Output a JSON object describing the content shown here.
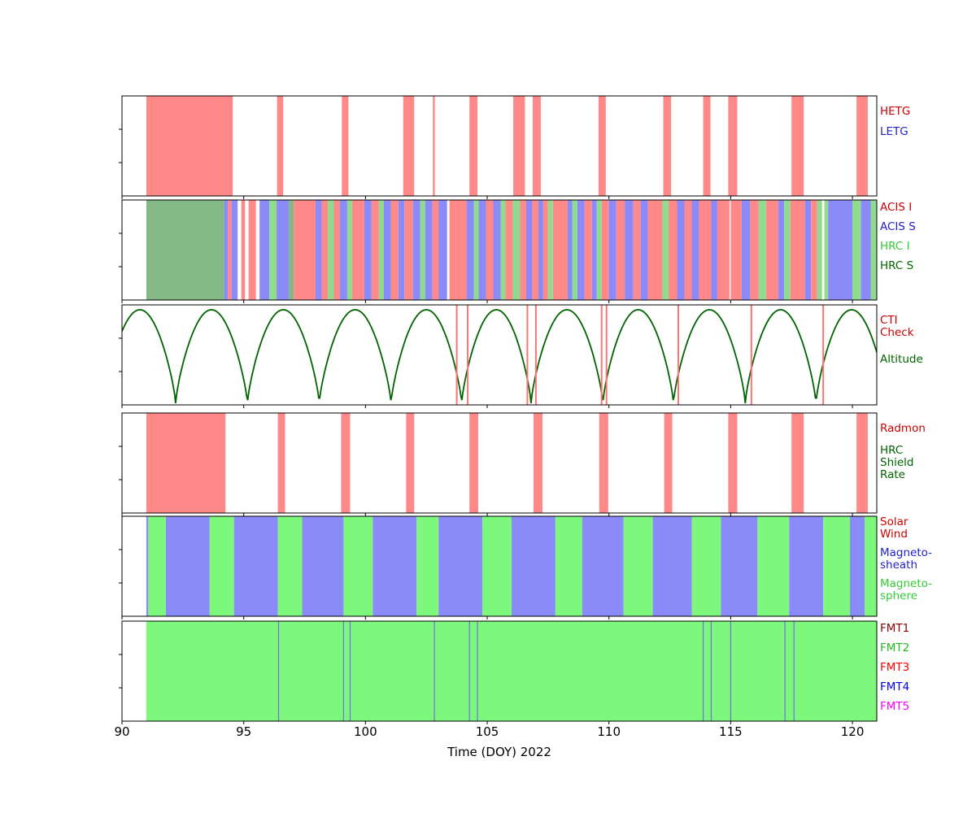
{
  "chart_data": {
    "type": "timeline",
    "title": "",
    "x_axis": {
      "label": "Time (DOY) 2022",
      "range": [
        90,
        121
      ],
      "ticks": [
        90,
        95,
        100,
        105,
        110,
        115,
        120
      ]
    },
    "palette": {
      "R": "#ff8888",
      "B": "#8a8af8",
      "G": "#8fdc8f",
      "S": "#84b884",
      "F": "#7df87d",
      "W": "#ffffff",
      "altitude": "#006400",
      "cti": "#ff7474",
      "fmt_line": "#7272e0"
    },
    "panels": [
      {
        "id": "gratings",
        "type": "interval-timeline",
        "legend": [
          {
            "label": "HETG",
            "color": "#cc0000"
          },
          {
            "label": "LETG",
            "color": "#2222cc"
          }
        ],
        "intervals": [
          [
            91.0,
            94.55,
            "R"
          ],
          [
            96.37,
            96.62,
            "R"
          ],
          [
            99.03,
            99.3,
            "R"
          ],
          [
            101.55,
            102.0,
            "R"
          ],
          [
            102.77,
            102.85,
            "R"
          ],
          [
            104.27,
            104.6,
            "R"
          ],
          [
            106.07,
            106.55,
            "R"
          ],
          [
            106.87,
            107.2,
            "R"
          ],
          [
            109.57,
            109.87,
            "R"
          ],
          [
            112.23,
            112.55,
            "R"
          ],
          [
            113.87,
            114.17,
            "R"
          ],
          [
            114.9,
            115.27,
            "R"
          ],
          [
            117.5,
            118.0,
            "R"
          ],
          [
            120.17,
            120.63,
            "R"
          ]
        ]
      },
      {
        "id": "instruments",
        "type": "interval-timeline",
        "legend": [
          {
            "label": "ACIS I",
            "color": "#cc0000"
          },
          {
            "label": "ACIS S",
            "color": "#2222cc"
          },
          {
            "label": "HRC I",
            "color": "#33cc33"
          },
          {
            "label": "HRC S",
            "color": "#006400"
          }
        ],
        "intervals": [
          [
            91.0,
            94.2,
            "S"
          ],
          [
            94.2,
            94.35,
            "B"
          ],
          [
            94.35,
            94.5,
            "R"
          ],
          [
            94.5,
            94.75,
            "B"
          ],
          [
            94.9,
            95.05,
            "R"
          ],
          [
            95.2,
            95.5,
            "R"
          ],
          [
            95.65,
            96.05,
            "B"
          ],
          [
            96.05,
            96.35,
            "G"
          ],
          [
            96.35,
            96.85,
            "B"
          ],
          [
            96.85,
            97.05,
            "S"
          ],
          [
            97.05,
            97.95,
            "R"
          ],
          [
            97.95,
            98.2,
            "B"
          ],
          [
            98.2,
            98.45,
            "R"
          ],
          [
            98.45,
            98.7,
            "G"
          ],
          [
            98.7,
            98.95,
            "R"
          ],
          [
            98.95,
            99.25,
            "B"
          ],
          [
            99.25,
            99.45,
            "G"
          ],
          [
            99.45,
            99.95,
            "R"
          ],
          [
            99.95,
            100.25,
            "B"
          ],
          [
            100.25,
            100.55,
            "R"
          ],
          [
            100.55,
            100.75,
            "G"
          ],
          [
            100.75,
            101.05,
            "B"
          ],
          [
            101.05,
            101.35,
            "R"
          ],
          [
            101.35,
            101.6,
            "B"
          ],
          [
            101.6,
            101.95,
            "R"
          ],
          [
            101.95,
            102.25,
            "B"
          ],
          [
            102.25,
            102.45,
            "G"
          ],
          [
            102.45,
            102.75,
            "B"
          ],
          [
            102.75,
            103.0,
            "R"
          ],
          [
            103.0,
            103.35,
            "B"
          ],
          [
            103.45,
            104.15,
            "R"
          ],
          [
            104.15,
            104.45,
            "B"
          ],
          [
            104.45,
            104.65,
            "G"
          ],
          [
            104.65,
            104.95,
            "B"
          ],
          [
            104.95,
            105.25,
            "R"
          ],
          [
            105.25,
            105.55,
            "B"
          ],
          [
            105.55,
            105.75,
            "G"
          ],
          [
            105.75,
            106.05,
            "R"
          ],
          [
            106.05,
            106.35,
            "G"
          ],
          [
            106.35,
            106.6,
            "R"
          ],
          [
            106.6,
            106.85,
            "B"
          ],
          [
            106.85,
            107.1,
            "R"
          ],
          [
            107.1,
            107.3,
            "B"
          ],
          [
            107.3,
            107.5,
            "R"
          ],
          [
            107.5,
            107.7,
            "G"
          ],
          [
            107.7,
            108.3,
            "R"
          ],
          [
            108.3,
            108.5,
            "B"
          ],
          [
            108.5,
            108.7,
            "G"
          ],
          [
            108.7,
            109.0,
            "B"
          ],
          [
            109.0,
            109.3,
            "R"
          ],
          [
            109.3,
            109.5,
            "B"
          ],
          [
            109.5,
            109.7,
            "G"
          ],
          [
            109.7,
            110.0,
            "R"
          ],
          [
            110.0,
            110.3,
            "B"
          ],
          [
            110.3,
            110.65,
            "R"
          ],
          [
            110.65,
            111.0,
            "B"
          ],
          [
            111.0,
            111.3,
            "R"
          ],
          [
            111.3,
            111.6,
            "B"
          ],
          [
            111.6,
            112.2,
            "R"
          ],
          [
            112.2,
            112.45,
            "G"
          ],
          [
            112.45,
            112.8,
            "R"
          ],
          [
            112.8,
            113.1,
            "B"
          ],
          [
            113.1,
            113.4,
            "R"
          ],
          [
            113.4,
            113.7,
            "B"
          ],
          [
            113.7,
            114.2,
            "R"
          ],
          [
            114.2,
            114.45,
            "B"
          ],
          [
            114.45,
            114.95,
            "R"
          ],
          [
            115.0,
            115.45,
            "R"
          ],
          [
            115.45,
            115.8,
            "B"
          ],
          [
            115.8,
            116.15,
            "R"
          ],
          [
            116.15,
            116.45,
            "G"
          ],
          [
            116.45,
            116.95,
            "R"
          ],
          [
            116.95,
            117.2,
            "B"
          ],
          [
            117.2,
            117.45,
            "G"
          ],
          [
            117.45,
            118.05,
            "R"
          ],
          [
            118.05,
            118.3,
            "B"
          ],
          [
            118.3,
            118.55,
            "R"
          ],
          [
            118.55,
            118.75,
            "G"
          ],
          [
            118.85,
            119.0,
            "G"
          ],
          [
            119.0,
            120.0,
            "B"
          ],
          [
            120.0,
            120.35,
            "G"
          ],
          [
            120.35,
            120.75,
            "B"
          ],
          [
            120.75,
            121.0,
            "G"
          ]
        ]
      },
      {
        "id": "orbit",
        "type": "line-with-events",
        "legend": [
          {
            "label": "CTI\nCheck",
            "color": "#cc0000"
          },
          {
            "label": "Altitude",
            "color": "#006400"
          }
        ],
        "perigees": [
          92.2,
          95.15,
          98.1,
          101.05,
          103.95,
          106.8,
          109.75,
          112.65,
          115.6,
          118.5
        ],
        "period": 2.93,
        "cti_lines": [
          103.75,
          104.2,
          106.65,
          107.0,
          109.7,
          109.9,
          112.85,
          115.85,
          118.8
        ]
      },
      {
        "id": "radmon",
        "type": "interval-timeline",
        "legend": [
          {
            "label": "Radmon",
            "color": "#cc0000"
          },
          {
            "label": "HRC\nShield\nRate",
            "color": "#006400"
          }
        ],
        "intervals": [
          [
            91.0,
            94.25,
            "R"
          ],
          [
            96.4,
            96.7,
            "R"
          ],
          [
            99.0,
            99.37,
            "R"
          ],
          [
            101.67,
            102.0,
            "R"
          ],
          [
            104.27,
            104.63,
            "R"
          ],
          [
            106.9,
            107.27,
            "R"
          ],
          [
            109.6,
            109.97,
            "R"
          ],
          [
            112.27,
            112.6,
            "R"
          ],
          [
            114.9,
            115.27,
            "R"
          ],
          [
            117.5,
            118.0,
            "R"
          ],
          [
            120.17,
            120.63,
            "R"
          ]
        ]
      },
      {
        "id": "solar-wind",
        "type": "interval-timeline",
        "legend": [
          {
            "label": "Solar\nWind",
            "color": "#cc0000"
          },
          {
            "label": "Magneto-\nsheath",
            "color": "#2222cc"
          },
          {
            "label": "Magneto-\nsphere",
            "color": "#33cc33"
          }
        ],
        "intervals": [
          [
            91.0,
            91.08,
            "B"
          ],
          [
            91.08,
            91.8,
            "F"
          ],
          [
            91.8,
            93.6,
            "B"
          ],
          [
            93.6,
            94.6,
            "F"
          ],
          [
            94.6,
            96.4,
            "B"
          ],
          [
            96.4,
            97.4,
            "F"
          ],
          [
            97.4,
            99.1,
            "B"
          ],
          [
            99.1,
            100.3,
            "F"
          ],
          [
            100.3,
            102.1,
            "B"
          ],
          [
            102.1,
            103.0,
            "F"
          ],
          [
            103.0,
            104.8,
            "B"
          ],
          [
            104.8,
            106.0,
            "F"
          ],
          [
            106.0,
            107.8,
            "B"
          ],
          [
            107.8,
            108.9,
            "F"
          ],
          [
            108.9,
            110.6,
            "B"
          ],
          [
            110.6,
            111.8,
            "F"
          ],
          [
            111.8,
            113.4,
            "B"
          ],
          [
            113.4,
            114.6,
            "F"
          ],
          [
            114.6,
            116.1,
            "B"
          ],
          [
            116.1,
            117.4,
            "F"
          ],
          [
            117.4,
            118.8,
            "B"
          ],
          [
            118.8,
            119.9,
            "F"
          ],
          [
            119.9,
            120.5,
            "B"
          ],
          [
            120.5,
            121.0,
            "F"
          ]
        ]
      },
      {
        "id": "fmt",
        "type": "fill-with-event-lines",
        "legend": [
          {
            "label": "FMT1",
            "color": "#8b0000"
          },
          {
            "label": "FMT2",
            "color": "#22bb22"
          },
          {
            "label": "FMT3",
            "color": "#ff0000"
          },
          {
            "label": "FMT4",
            "color": "#0000ee"
          },
          {
            "label": "FMT5",
            "color": "#ff00ff"
          }
        ],
        "fill_range": [
          91.0,
          121.0
        ],
        "fill_color": "F",
        "lines": [
          96.43,
          99.1,
          99.37,
          102.83,
          104.27,
          104.6,
          113.87,
          114.2,
          115.0,
          117.23,
          117.6
        ]
      }
    ]
  }
}
